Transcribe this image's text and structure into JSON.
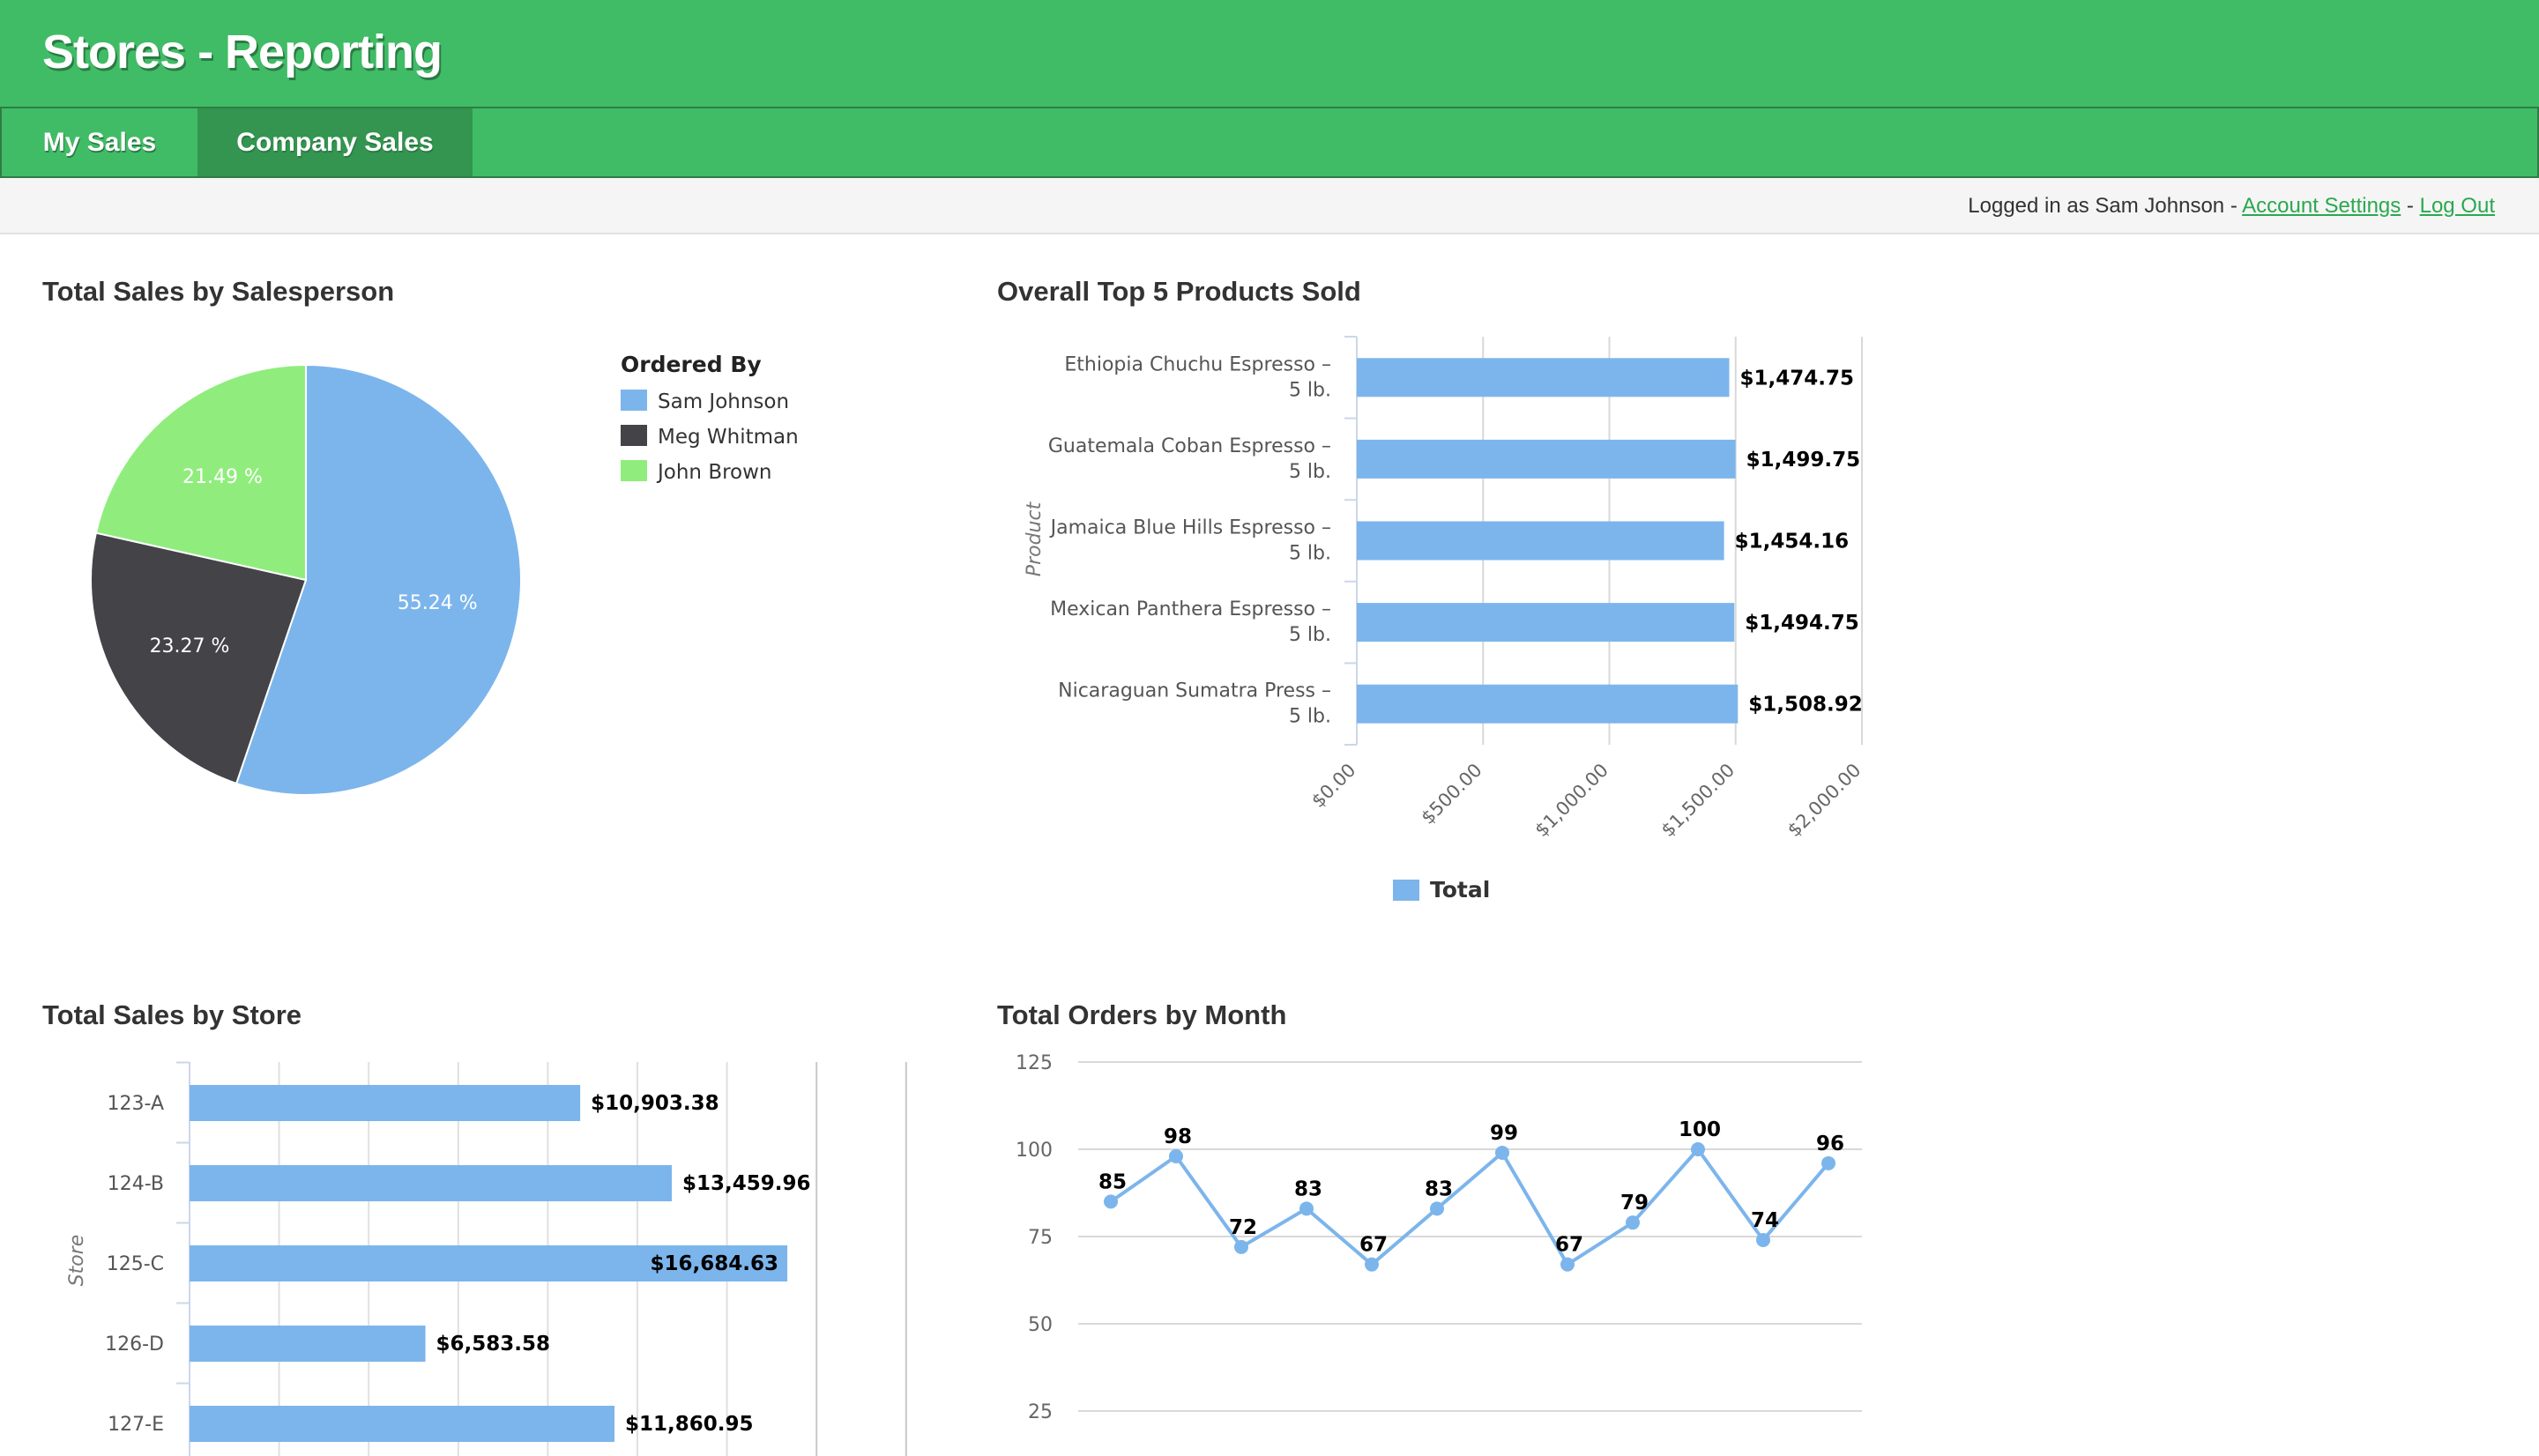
{
  "app": {
    "title": "Stores - Reporting"
  },
  "nav": {
    "tabs": [
      {
        "label": "My Sales",
        "active": false
      },
      {
        "label": "Company Sales",
        "active": true
      }
    ]
  },
  "infobar": {
    "logged_in_text": "Logged in as Sam Johnson - ",
    "account_settings": "Account Settings",
    "separator": " - ",
    "log_out": "Log Out"
  },
  "colors": {
    "brand": "#40bc66",
    "brand_dark": "#33954f",
    "series1": "#7cb5ec",
    "series2": "#434348",
    "series3": "#90ed7d"
  },
  "chart_data": [
    {
      "type": "pie",
      "title": "Total Sales by Salesperson",
      "legend_title": "Ordered By",
      "legend_position": "right",
      "labels": [
        "Sam Johnson",
        "Meg Whitman",
        "John Brown"
      ],
      "values": [
        55.24,
        23.27,
        21.49
      ],
      "value_labels": [
        "55.24 %",
        "23.27 %",
        "21.49 %"
      ],
      "colors": [
        "#7cb5ec",
        "#434348",
        "#90ed7d"
      ]
    },
    {
      "type": "bar",
      "orientation": "horizontal",
      "title": "Overall Top 5 Products Sold",
      "ylabel": "Product",
      "categories": [
        [
          "Ethiopia Chuchu Espresso –",
          "5 lb."
        ],
        [
          "Guatemala Coban Espresso –",
          "5 lb."
        ],
        [
          "Jamaica Blue Hills Espresso –",
          "5 lb."
        ],
        [
          "Mexican Panthera Espresso –",
          "5 lb."
        ],
        [
          "Nicaraguan Sumatra Press –",
          "5 lb."
        ]
      ],
      "values": [
        1474.75,
        1499.75,
        1454.16,
        1494.75,
        1508.92
      ],
      "value_labels": [
        "$1,474.75",
        "$1,499.75",
        "$1,454.16",
        "$1,494.75",
        "$1,508.92"
      ],
      "xlim": [
        0,
        2000
      ],
      "xticks": [
        0,
        500,
        1000,
        1500,
        2000
      ],
      "xtick_labels": [
        "$0.00",
        "$500.00",
        "$1,000.00",
        "$1,500.00",
        "$2,000.00"
      ],
      "legend": [
        "Total"
      ],
      "legend_position": "bottom"
    },
    {
      "type": "bar",
      "orientation": "horizontal",
      "title": "Total Sales by Store",
      "ylabel": "Store",
      "categories": [
        "123-A",
        "124-B",
        "125-C",
        "126-D",
        "127-E"
      ],
      "values": [
        10903.38,
        13459.96,
        16684.63,
        6583.58,
        11860.95
      ],
      "value_labels": [
        "$10,903.38",
        "$13,459.96",
        "$16,684.63",
        "$6,583.58",
        "$11,860.95"
      ],
      "xlim": [
        0,
        20000
      ]
    },
    {
      "type": "line",
      "title": "Total Orders by Month",
      "values": [
        85,
        98,
        72,
        83,
        67,
        83,
        99,
        67,
        79,
        100,
        74,
        96
      ],
      "yticks": [
        125,
        100,
        75,
        50,
        25
      ],
      "ylim": [
        25,
        125
      ]
    }
  ]
}
